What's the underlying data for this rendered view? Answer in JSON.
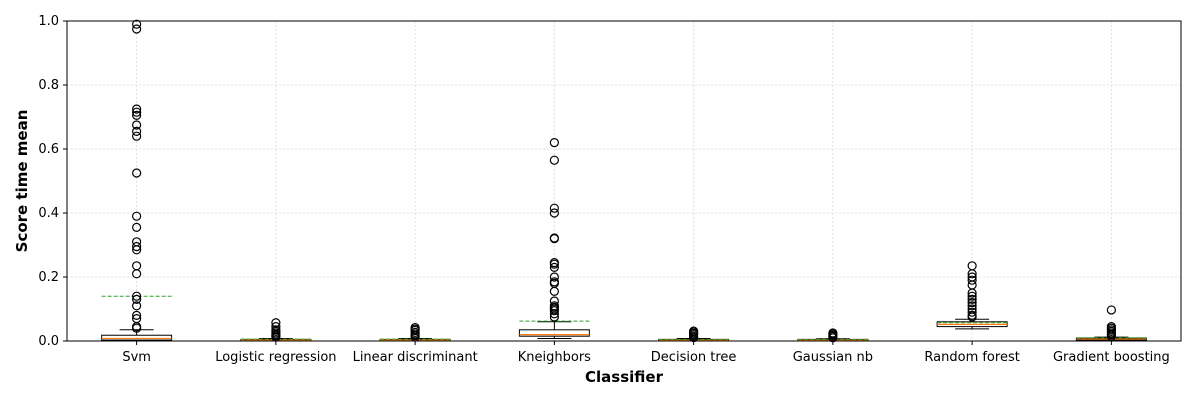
{
  "chart_data": {
    "type": "box",
    "title": "",
    "xlabel": "Classifier",
    "ylabel": "Score time mean",
    "ylim": [
      0,
      1.0
    ],
    "yticks": [
      "0.0",
      "0.2",
      "0.4",
      "0.6",
      "0.8",
      "1.0"
    ],
    "grid": true,
    "mean_line": true,
    "colors": {
      "median": "#ff7f0e",
      "mean": "#2ca02c",
      "box": "#000000",
      "grid": "#d9d9d9"
    },
    "categories": [
      "Svm",
      "Logistic regression",
      "Linear discriminant",
      "Kneighbors",
      "Decision tree",
      "Gaussian nb",
      "Random forest",
      "Gradient boosting"
    ],
    "boxes": [
      {
        "label": "Svm",
        "whisker_low": 0.0,
        "q1": 0.003,
        "median": 0.008,
        "q3": 0.018,
        "whisker_high": 0.035,
        "mean": 0.14,
        "outliers": [
          0.04,
          0.045,
          0.07,
          0.08,
          0.11,
          0.13,
          0.14,
          0.21,
          0.235,
          0.285,
          0.295,
          0.31,
          0.355,
          0.39,
          0.525,
          0.64,
          0.655,
          0.675,
          0.705,
          0.715,
          0.725,
          0.975,
          0.99
        ]
      },
      {
        "label": "Logistic regression",
        "whisker_low": 0.0,
        "q1": 0.002,
        "median": 0.003,
        "q3": 0.005,
        "whisker_high": 0.008,
        "mean": 0.006,
        "outliers": [
          0.012,
          0.016,
          0.02,
          0.025,
          0.03,
          0.035,
          0.045,
          0.057
        ]
      },
      {
        "label": "Linear discriminant",
        "whisker_low": 0.0,
        "q1": 0.002,
        "median": 0.003,
        "q3": 0.005,
        "whisker_high": 0.008,
        "mean": 0.006,
        "outliers": [
          0.012,
          0.017,
          0.022,
          0.027,
          0.033,
          0.037,
          0.042
        ]
      },
      {
        "label": "Kneighbors",
        "whisker_low": 0.008,
        "q1": 0.015,
        "median": 0.02,
        "q3": 0.035,
        "whisker_high": 0.06,
        "mean": 0.062,
        "outliers": [
          0.075,
          0.085,
          0.095,
          0.1,
          0.105,
          0.11,
          0.125,
          0.155,
          0.18,
          0.185,
          0.2,
          0.23,
          0.24,
          0.245,
          0.32,
          0.322,
          0.4,
          0.415,
          0.565,
          0.62
        ]
      },
      {
        "label": "Decision tree",
        "whisker_low": 0.0,
        "q1": 0.002,
        "median": 0.003,
        "q3": 0.005,
        "whisker_high": 0.008,
        "mean": 0.005,
        "outliers": [
          0.011,
          0.015,
          0.02,
          0.024,
          0.028,
          0.031
        ]
      },
      {
        "label": "Gaussian nb",
        "whisker_low": 0.0,
        "q1": 0.002,
        "median": 0.003,
        "q3": 0.005,
        "whisker_high": 0.007,
        "mean": 0.005,
        "outliers": [
          0.01,
          0.014,
          0.018,
          0.022,
          0.025
        ]
      },
      {
        "label": "Random forest",
        "whisker_low": 0.038,
        "q1": 0.045,
        "median": 0.052,
        "q3": 0.06,
        "whisker_high": 0.068,
        "mean": 0.057,
        "outliers": [
          0.075,
          0.08,
          0.09,
          0.1,
          0.11,
          0.12,
          0.13,
          0.14,
          0.15,
          0.175,
          0.19,
          0.2,
          0.21,
          0.235
        ]
      },
      {
        "label": "Gradient boosting",
        "whisker_low": 0.0,
        "q1": 0.003,
        "median": 0.006,
        "q3": 0.009,
        "whisker_high": 0.012,
        "mean": 0.01,
        "outliers": [
          0.015,
          0.02,
          0.025,
          0.03,
          0.035,
          0.04,
          0.045,
          0.097
        ]
      }
    ]
  }
}
